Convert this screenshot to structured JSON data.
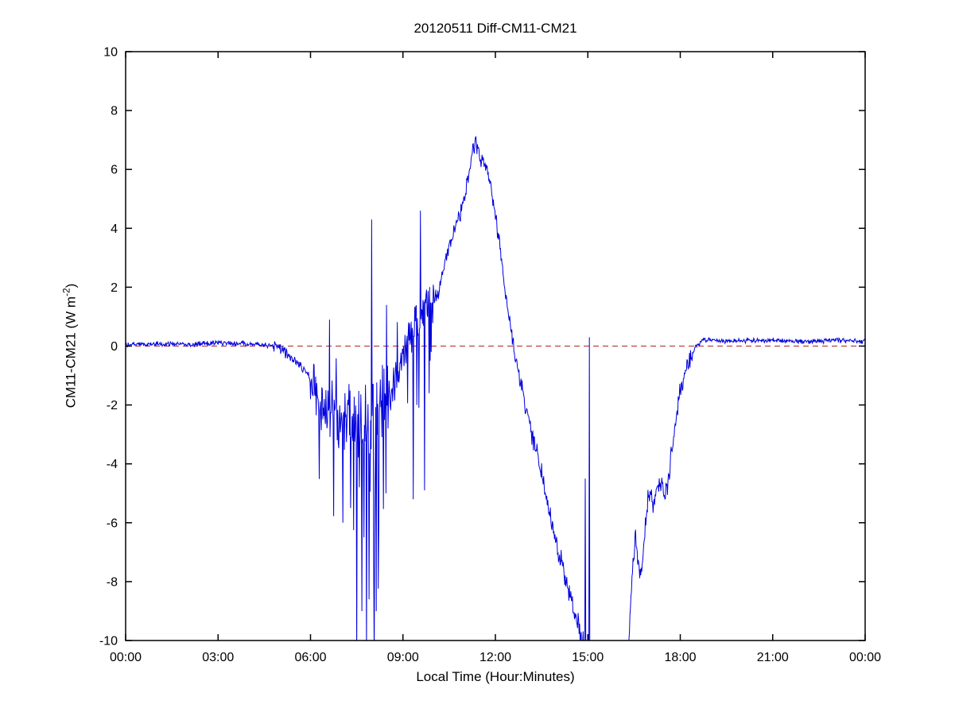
{
  "figure": {
    "title": "20120511 Diff-CM11-CM21",
    "xlabel": "Local Time (Hour:Minutes)",
    "ylabel": {
      "pre": "CM11-CM21 (W m",
      "sup": "-2",
      "post": ")"
    }
  },
  "chart_data": {
    "type": "line",
    "title": "20120511 Diff-CM11-CM21",
    "xlabel": "Local Time (Hour:Minutes)",
    "ylabel": "CM11-CM21 (W m^-2)",
    "xlim": [
      0,
      24
    ],
    "ylim": [
      -10,
      10
    ],
    "xticks": {
      "values": [
        0,
        3,
        6,
        9,
        12,
        15,
        18,
        21,
        24
      ],
      "labels": [
        "00:00",
        "03:00",
        "06:00",
        "09:00",
        "12:00",
        "15:00",
        "18:00",
        "21:00",
        "00:00"
      ]
    },
    "yticks": [
      -10,
      -8,
      -6,
      -4,
      -2,
      0,
      2,
      4,
      6,
      8,
      10
    ],
    "grid": false,
    "legend": null,
    "series_color": "#0000dd",
    "zero_line": {
      "y": 0,
      "style": "dashed",
      "color": "#b22222"
    },
    "sampling_minutes": 1,
    "seed": 20120511,
    "trend_keypoints": [
      [
        0,
        0.05
      ],
      [
        1,
        0.08
      ],
      [
        2,
        0.05
      ],
      [
        3,
        0.12
      ],
      [
        4,
        0.08
      ],
      [
        4.8,
        0.02
      ],
      [
        5.1,
        -0.15
      ],
      [
        5.4,
        -0.4
      ],
      [
        5.7,
        -0.7
      ],
      [
        5.95,
        -1.1
      ],
      [
        6.2,
        -1.8
      ],
      [
        6.5,
        -2.2
      ],
      [
        6.9,
        -2.4
      ],
      [
        7.4,
        -2.5
      ],
      [
        7.9,
        -2.4
      ],
      [
        8.3,
        -2.2
      ],
      [
        8.55,
        -1.9
      ],
      [
        8.75,
        -1.2
      ],
      [
        8.95,
        -0.5
      ],
      [
        9.15,
        0.2
      ],
      [
        9.4,
        0.8
      ],
      [
        9.65,
        1.2
      ],
      [
        9.9,
        1.6
      ],
      [
        10.05,
        1.5
      ],
      [
        10.2,
        1.9
      ],
      [
        10.35,
        2.8
      ],
      [
        10.5,
        3.4
      ],
      [
        10.65,
        3.9
      ],
      [
        10.8,
        4.3
      ],
      [
        10.95,
        4.8
      ],
      [
        11.1,
        5.6
      ],
      [
        11.25,
        6.6
      ],
      [
        11.35,
        7.0
      ],
      [
        11.45,
        6.5
      ],
      [
        11.55,
        6.2
      ],
      [
        11.65,
        6.3
      ],
      [
        11.75,
        5.8
      ],
      [
        11.9,
        5.1
      ],
      [
        12.05,
        4.1
      ],
      [
        12.2,
        2.9
      ],
      [
        12.35,
        1.6
      ],
      [
        12.5,
        0.6
      ],
      [
        12.65,
        -0.3
      ],
      [
        12.85,
        -1.4
      ],
      [
        13.1,
        -2.6
      ],
      [
        13.4,
        -3.9
      ],
      [
        13.7,
        -5.3
      ],
      [
        14.0,
        -6.8
      ],
      [
        14.3,
        -8.0
      ],
      [
        14.6,
        -9.2
      ],
      [
        14.85,
        -10.2
      ],
      [
        15.1,
        -10.9
      ],
      [
        16.25,
        -11.3
      ],
      [
        16.35,
        -9.8
      ],
      [
        16.45,
        -7.6
      ],
      [
        16.55,
        -6.4
      ],
      [
        16.62,
        -7.2
      ],
      [
        16.7,
        -7.9
      ],
      [
        16.82,
        -6.9
      ],
      [
        16.92,
        -5.4
      ],
      [
        17.02,
        -4.9
      ],
      [
        17.12,
        -5.6
      ],
      [
        17.25,
        -4.8
      ],
      [
        17.4,
        -4.6
      ],
      [
        17.5,
        -5.1
      ],
      [
        17.62,
        -4.5
      ],
      [
        17.75,
        -3.4
      ],
      [
        17.88,
        -2.4
      ],
      [
        18.0,
        -1.6
      ],
      [
        18.15,
        -0.9
      ],
      [
        18.35,
        -0.35
      ],
      [
        18.55,
        0.05
      ],
      [
        18.8,
        0.2
      ],
      [
        20,
        0.18
      ],
      [
        21,
        0.2
      ],
      [
        22,
        0.15
      ],
      [
        23,
        0.2
      ],
      [
        24,
        0.15
      ]
    ],
    "noise_segments": [
      {
        "from": 0,
        "to": 4.8,
        "amp": 0.1
      },
      {
        "from": 4.8,
        "to": 6.0,
        "amp": 0.22
      },
      {
        "from": 6.0,
        "to": 7.2,
        "amp": 1.2,
        "spike_prob": 0.06,
        "spike_amp": 3.5,
        "neg_frac": 0.75
      },
      {
        "from": 7.2,
        "to": 8.6,
        "amp": 1.8,
        "spike_prob": 0.12,
        "spike_amp": 6.0,
        "neg_frac": 0.72
      },
      {
        "from": 8.6,
        "to": 10.1,
        "amp": 0.8,
        "spike_prob": 0.05,
        "spike_amp": 3.2,
        "neg_frac": 0.8
      },
      {
        "from": 10.1,
        "to": 12.6,
        "amp": 0.33
      },
      {
        "from": 12.6,
        "to": 14.6,
        "amp": 0.45
      },
      {
        "from": 14.6,
        "to": 16.3,
        "amp": 0.7
      },
      {
        "from": 16.3,
        "to": 18.4,
        "amp": 0.45
      },
      {
        "from": 18.4,
        "to": 24,
        "amp": 0.1
      }
    ],
    "spikes": [
      [
        6.62,
        0.9
      ],
      [
        7.05,
        -6.0
      ],
      [
        7.3,
        -5.5
      ],
      [
        7.5,
        -10.6
      ],
      [
        7.58,
        -4.8
      ],
      [
        7.66,
        -9.0
      ],
      [
        7.74,
        -6.5
      ],
      [
        7.82,
        -10.6
      ],
      [
        7.9,
        -8.6
      ],
      [
        7.98,
        4.3
      ],
      [
        8.06,
        -10.6
      ],
      [
        8.14,
        -9.0
      ],
      [
        8.22,
        -6.0
      ],
      [
        8.45,
        -5.0
      ],
      [
        9.33,
        -5.2
      ],
      [
        9.45,
        -2.0
      ],
      [
        9.57,
        4.6
      ],
      [
        9.7,
        -4.9
      ],
      [
        9.85,
        -1.6
      ],
      [
        14.92,
        -4.5
      ],
      [
        15.05,
        0.3
      ]
    ]
  }
}
